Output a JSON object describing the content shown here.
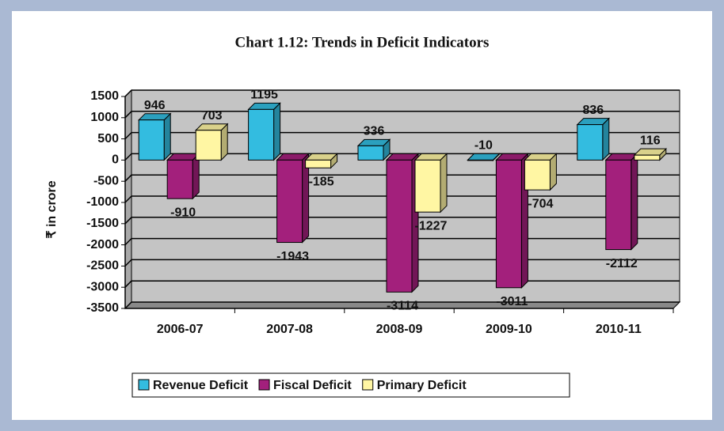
{
  "chart_data": {
    "type": "bar",
    "title": "Chart 1.12: Trends in Deficit Indicators",
    "y_label": "₹ in crore",
    "categories": [
      "2006-07",
      "2007-08",
      "2008-09",
      "2009-10",
      "2010-11"
    ],
    "series": [
      {
        "name": "Revenue Deficit",
        "color": "#33bce0",
        "values": [
          946,
          1195,
          336,
          -10,
          836
        ]
      },
      {
        "name": "Fiscal Deficit",
        "color": "#a3207c",
        "values": [
          -910,
          -1943,
          -3114,
          -3011,
          -2112
        ]
      },
      {
        "name": "Primary Deficit",
        "color": "#fff6a3",
        "values": [
          703,
          -185,
          -1227,
          -704,
          116
        ]
      }
    ],
    "ylim": [
      -3500,
      1500
    ],
    "yticks": [
      -3500,
      -3000,
      -2500,
      -2000,
      -1500,
      -1000,
      -500,
      0,
      500,
      1000,
      1500
    ],
    "grid": true,
    "legend": "bottom"
  }
}
